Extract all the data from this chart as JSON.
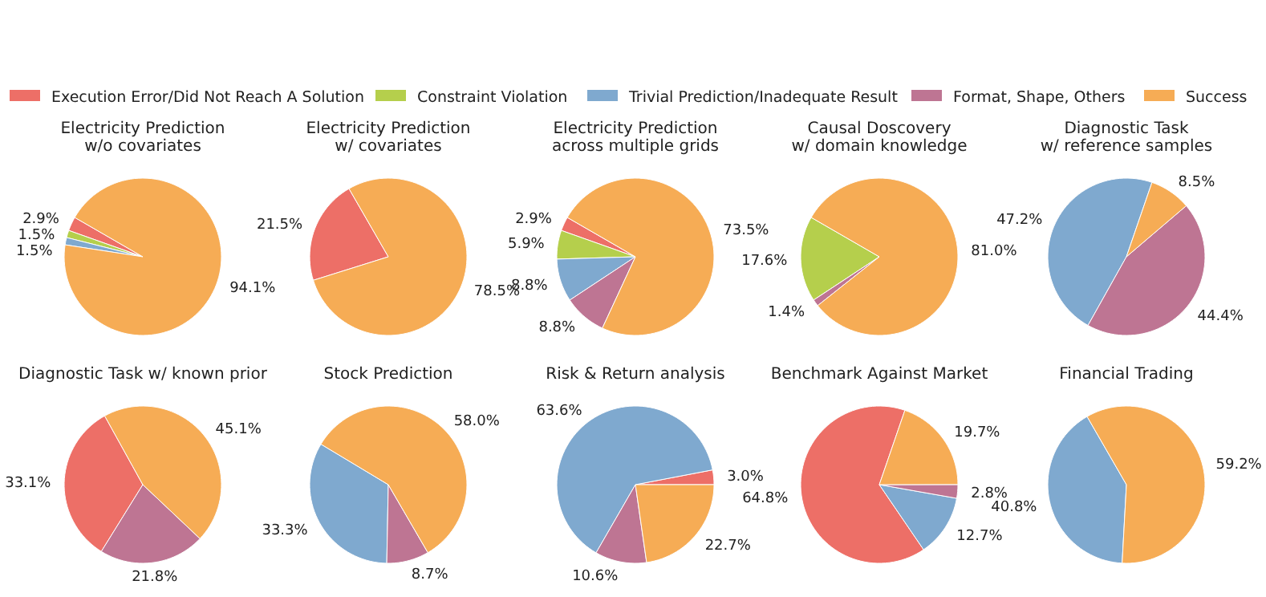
{
  "chart_data": [
    {
      "type": "pie",
      "title": "Electricity Prediction\nw/o covariates",
      "legend": "top",
      "categories": [
        "Execution Error/Did Not Reach A Solution",
        "Constraint Violation",
        "Trivial Prediction/Inadequate Result",
        "Format, Shape, Others",
        "Success"
      ],
      "colors": [
        "#ed6f67",
        "#b5cf4c",
        "#7fa9cf",
        "#be7593",
        "#f6ac55"
      ],
      "values": [
        2.9,
        1.5,
        1.5,
        0,
        94.1
      ],
      "value_labels": [
        "2.9%",
        "1.5%",
        "1.5%",
        null,
        "94.1%"
      ]
    },
    {
      "type": "pie",
      "title": "Electricity Prediction\nw/ covariates",
      "categories": [
        null,
        null,
        null,
        null,
        null
      ],
      "colors": [
        "#ed6f67",
        "#b5cf4c",
        "#7fa9cf",
        "#be7593",
        "#f6ac55"
      ],
      "values": [
        21.5,
        0,
        0,
        0,
        78.5
      ],
      "value_labels": [
        "21.5%",
        null,
        null,
        null,
        "78.5%"
      ]
    },
    {
      "type": "pie",
      "title": "Electricity Prediction\nacross multiple grids",
      "categories": [
        null,
        null,
        null,
        null,
        null
      ],
      "colors": [
        "#ed6f67",
        "#b5cf4c",
        "#7fa9cf",
        "#be7593",
        "#f6ac55"
      ],
      "values": [
        2.9,
        5.9,
        8.8,
        8.8,
        73.5
      ],
      "value_labels": [
        "2.9%",
        "5.9%",
        "8.8%",
        "8.8%",
        "73.5%"
      ]
    },
    {
      "type": "pie",
      "title": "Causal Doscovery\nw/ domain knowledge",
      "categories": [
        null,
        null,
        null,
        null,
        null
      ],
      "colors": [
        "#ed6f67",
        "#b5cf4c",
        "#7fa9cf",
        "#be7593",
        "#f6ac55"
      ],
      "values": [
        0,
        17.6,
        0,
        1.4,
        81.0
      ],
      "value_labels": [
        null,
        "17.6%",
        null,
        "1.4%",
        "81.0%"
      ]
    },
    {
      "type": "pie",
      "title": "Diagnostic Task\nw/ reference samples",
      "categories": [
        null,
        null,
        null,
        null,
        null
      ],
      "colors": [
        "#ed6f67",
        "#b5cf4c",
        "#7fa9cf",
        "#be7593",
        "#f6ac55"
      ],
      "values": [
        0,
        0,
        47.2,
        44.4,
        8.5
      ],
      "value_labels": [
        null,
        null,
        "47.2%",
        "44.4%",
        "8.5%"
      ]
    },
    {
      "type": "pie",
      "title": "Diagnostic Task w/ known prior",
      "categories": [
        null,
        null,
        null,
        null,
        null
      ],
      "colors": [
        "#ed6f67",
        "#b5cf4c",
        "#7fa9cf",
        "#be7593",
        "#f6ac55"
      ],
      "values": [
        33.1,
        0,
        0,
        21.8,
        45.1
      ],
      "value_labels": [
        "33.1%",
        null,
        null,
        "21.8%",
        "45.1%"
      ]
    },
    {
      "type": "pie",
      "title": "Stock Prediction",
      "categories": [
        null,
        null,
        null,
        null,
        null
      ],
      "colors": [
        "#ed6f67",
        "#b5cf4c",
        "#7fa9cf",
        "#be7593",
        "#f6ac55"
      ],
      "values": [
        0,
        0,
        33.3,
        8.7,
        58.0
      ],
      "value_labels": [
        null,
        null,
        "33.3%",
        "8.7%",
        "58.0%"
      ]
    },
    {
      "type": "pie",
      "title": "Risk & Return analysis",
      "categories": [
        null,
        null,
        null,
        null,
        null
      ],
      "colors": [
        "#ed6f67",
        "#b5cf4c",
        "#7fa9cf",
        "#be7593",
        "#f6ac55"
      ],
      "values": [
        3.0,
        0,
        63.6,
        10.6,
        22.7
      ],
      "value_labels": [
        "3.0%",
        null,
        "63.6%",
        "10.6%",
        "22.7%"
      ]
    },
    {
      "type": "pie",
      "title": "Benchmark Against Market",
      "categories": [
        null,
        null,
        null,
        null,
        null
      ],
      "colors": [
        "#ed6f67",
        "#b5cf4c",
        "#7fa9cf",
        "#be7593",
        "#f6ac55"
      ],
      "values": [
        64.8,
        0,
        12.7,
        2.8,
        19.7
      ],
      "value_labels": [
        "64.8%",
        null,
        "12.7%",
        "2.8%",
        "19.7%"
      ]
    },
    {
      "type": "pie",
      "title": "Financial Trading",
      "categories": [
        null,
        null,
        null,
        null,
        null
      ],
      "colors": [
        "#ed6f67",
        "#b5cf4c",
        "#7fa9cf",
        "#be7593",
        "#f6ac55"
      ],
      "values": [
        0,
        0,
        40.8,
        0,
        59.2
      ],
      "value_labels": [
        null,
        null,
        "40.8%",
        null,
        "59.2%"
      ]
    }
  ]
}
